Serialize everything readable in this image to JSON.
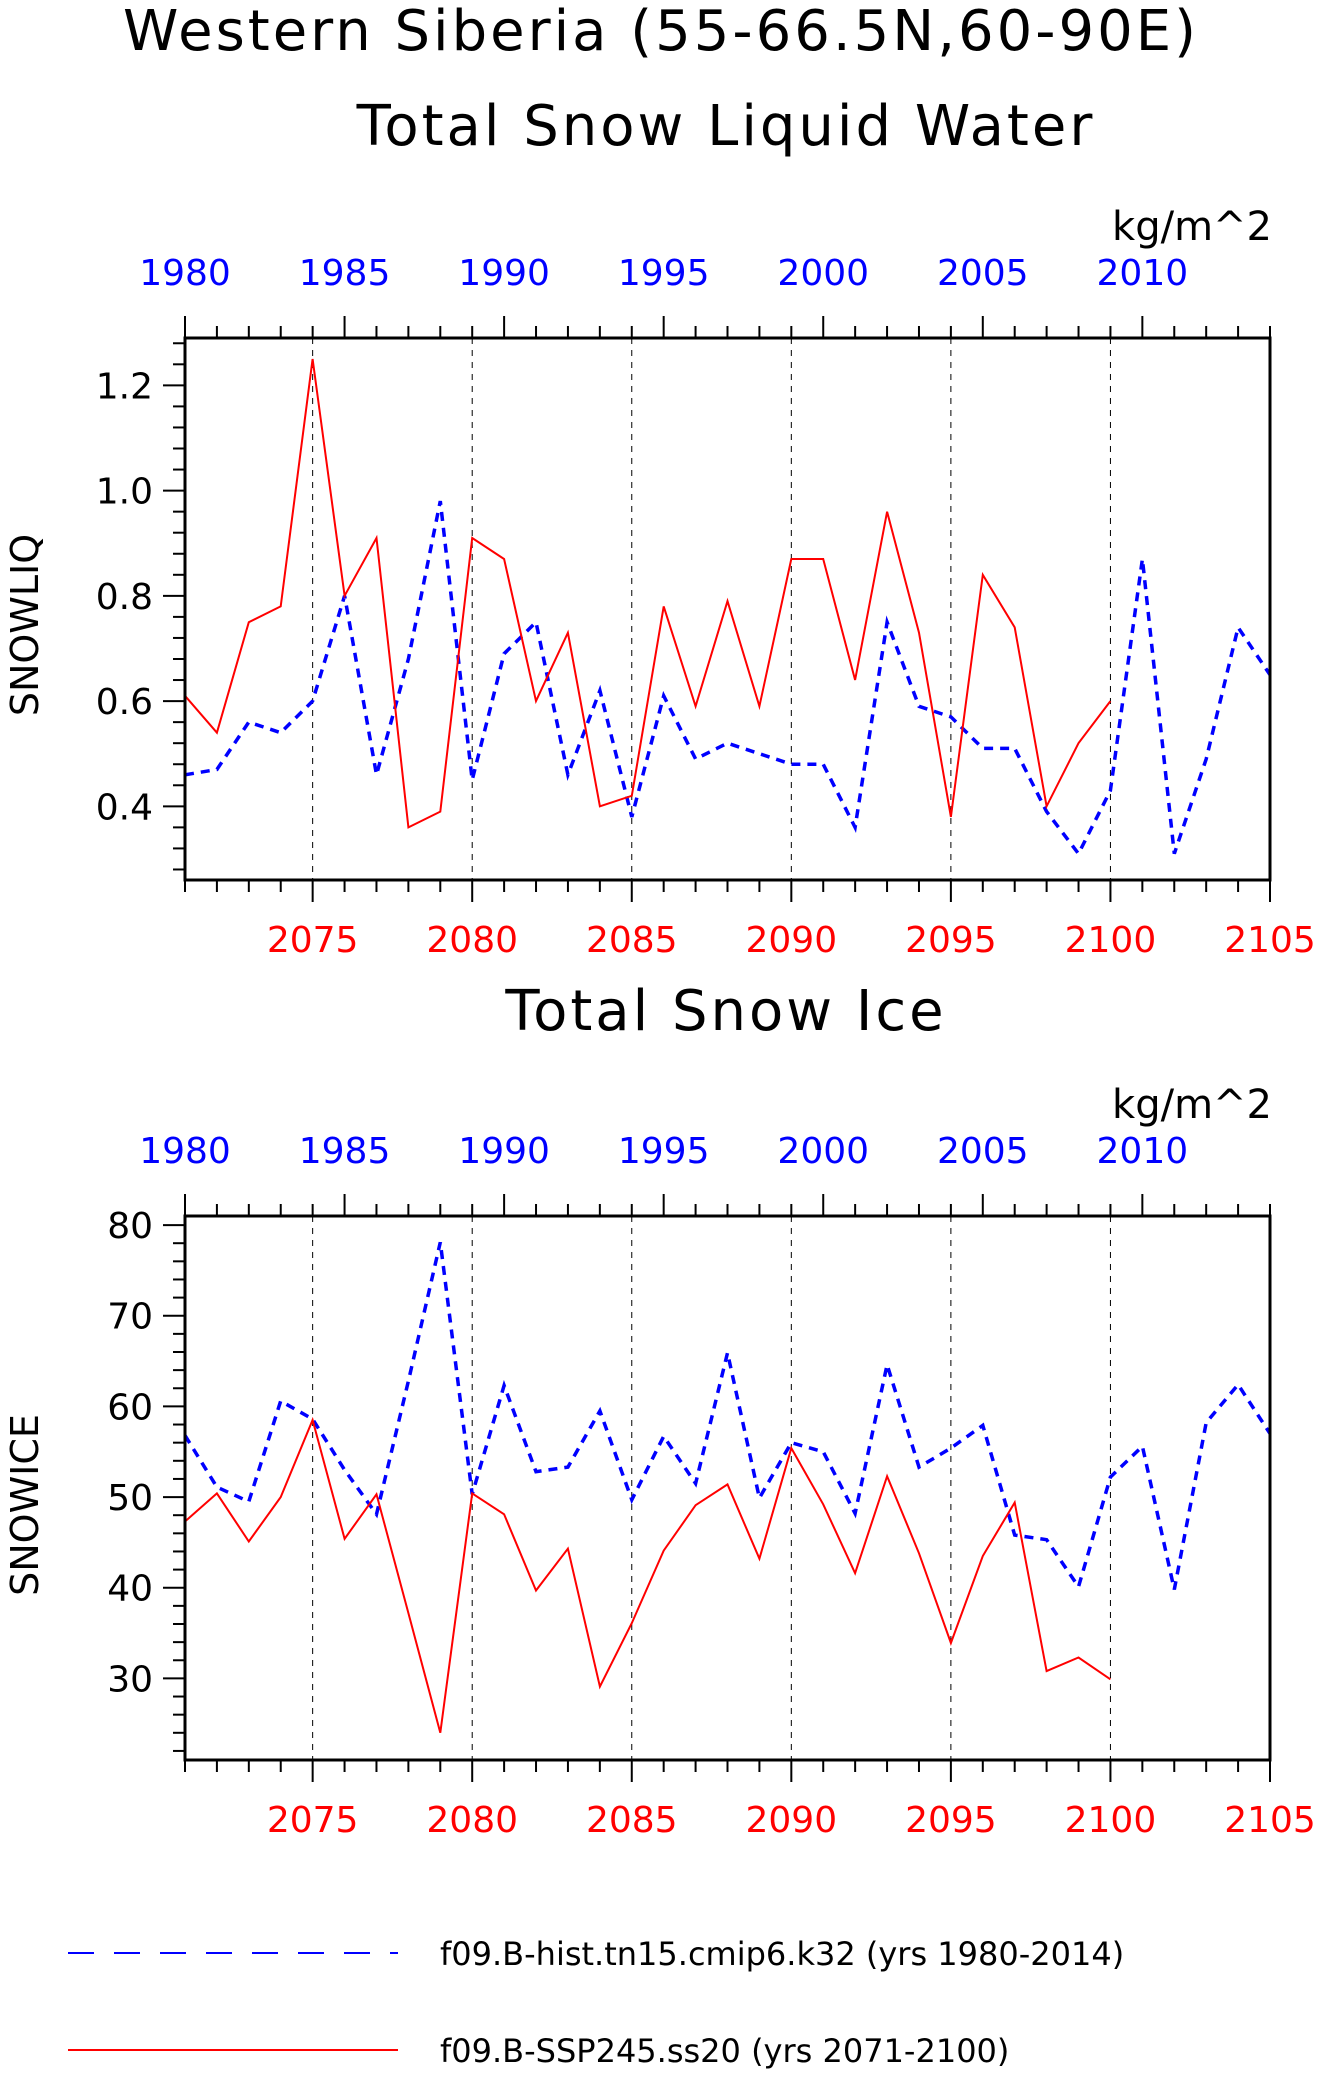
{
  "title_line1": "Western Siberia (55-66.5N,60-90E)",
  "chart_data": [
    {
      "type": "line",
      "title": "Total Snow Liquid Water",
      "ylabel": "SNOWLIQ",
      "units": "kg/m^2",
      "ylim": [
        0.26,
        1.29
      ],
      "yticks": [
        "0.4",
        "0.6",
        "0.8",
        "1.0",
        "1.2"
      ],
      "top_axis_ticks": [
        "1980",
        "1985",
        "1990",
        "1995",
        "2000",
        "2005",
        "2010"
      ],
      "bottom_axis_ticks": [
        "2075",
        "2080",
        "2085",
        "2090",
        "2095",
        "2100",
        "2105"
      ],
      "grid": "dashed vertical lines every 5 years",
      "series": [
        {
          "name": "f09.B-hist.tn15.cmip6.k32 (yrs 1980-2014)",
          "color": "#0000ff",
          "style": "dashed",
          "x": [
            1980,
            1981,
            1982,
            1983,
            1984,
            1985,
            1986,
            1987,
            1988,
            1989,
            1990,
            1991,
            1992,
            1993,
            1994,
            1995,
            1996,
            1997,
            1998,
            1999,
            2000,
            2001,
            2002,
            2003,
            2004,
            2005,
            2006,
            2007,
            2008,
            2009,
            2010,
            2011,
            2012,
            2013,
            2014
          ],
          "values": [
            0.46,
            0.47,
            0.56,
            0.54,
            0.6,
            0.8,
            0.46,
            0.68,
            0.98,
            0.45,
            0.69,
            0.75,
            0.46,
            0.62,
            0.38,
            0.61,
            0.49,
            0.52,
            0.5,
            0.48,
            0.48,
            0.36,
            0.75,
            0.59,
            0.57,
            0.51,
            0.51,
            0.39,
            0.31,
            0.43,
            0.87,
            0.31,
            0.49,
            0.74,
            0.65
          ]
        },
        {
          "name": "f09.B-SSP245.ss20 (yrs 2071-2100)",
          "color": "#ff0000",
          "style": "solid",
          "x": [
            2071,
            2072,
            2073,
            2074,
            2075,
            2076,
            2077,
            2078,
            2079,
            2080,
            2081,
            2082,
            2083,
            2084,
            2085,
            2086,
            2087,
            2088,
            2089,
            2090,
            2091,
            2092,
            2093,
            2094,
            2095,
            2096,
            2097,
            2098,
            2099,
            2100
          ],
          "values": [
            0.61,
            0.54,
            0.75,
            0.78,
            1.25,
            0.8,
            0.91,
            0.36,
            0.39,
            0.91,
            0.87,
            0.6,
            0.73,
            0.4,
            0.42,
            0.78,
            0.59,
            0.79,
            0.59,
            0.87,
            0.87,
            0.64,
            0.96,
            0.73,
            0.38,
            0.84,
            0.74,
            0.4,
            0.52,
            0.6
          ]
        }
      ]
    },
    {
      "type": "line",
      "title": "Total Snow Ice",
      "ylabel": "SNOWICE",
      "units": "kg/m^2",
      "ylim": [
        21,
        81
      ],
      "yticks": [
        "30",
        "40",
        "50",
        "60",
        "70",
        "80"
      ],
      "top_axis_ticks": [
        "1980",
        "1985",
        "1990",
        "1995",
        "2000",
        "2005",
        "2010"
      ],
      "bottom_axis_ticks": [
        "2075",
        "2080",
        "2085",
        "2090",
        "2095",
        "2100",
        "2105"
      ],
      "grid": "dashed vertical lines every 5 years",
      "series": [
        {
          "name": "f09.B-hist.tn15.cmip6.k32 (yrs 1980-2014)",
          "color": "#0000ff",
          "style": "dashed",
          "x": [
            1980,
            1981,
            1982,
            1983,
            1984,
            1985,
            1986,
            1987,
            1988,
            1989,
            1990,
            1991,
            1992,
            1993,
            1994,
            1995,
            1996,
            1997,
            1998,
            1999,
            2000,
            2001,
            2002,
            2003,
            2004,
            2005,
            2006,
            2007,
            2008,
            2009,
            2010,
            2011,
            2012,
            2013,
            2014
          ],
          "values": [
            56.8,
            51.1,
            49.5,
            60.6,
            58.6,
            53.0,
            48.1,
            62.8,
            78.1,
            50.3,
            62.3,
            52.8,
            53.3,
            59.5,
            49.7,
            56.7,
            51.5,
            65.9,
            49.9,
            56.0,
            55.0,
            48.2,
            64.6,
            53.3,
            55.4,
            57.9,
            45.8,
            45.3,
            40.1,
            52.2,
            55.6,
            39.8,
            58.2,
            62.4,
            57.0
          ]
        },
        {
          "name": "f09.B-SSP245.ss20 (yrs 2071-2100)",
          "color": "#ff0000",
          "style": "solid",
          "x": [
            2071,
            2072,
            2073,
            2074,
            2075,
            2076,
            2077,
            2078,
            2079,
            2080,
            2081,
            2082,
            2083,
            2084,
            2085,
            2086,
            2087,
            2088,
            2089,
            2090,
            2091,
            2092,
            2093,
            2094,
            2095,
            2096,
            2097,
            2098,
            2099,
            2100
          ],
          "values": [
            47.3,
            50.4,
            45.1,
            50.0,
            58.5,
            45.4,
            50.3,
            37.2,
            24.0,
            50.4,
            48.1,
            39.7,
            44.3,
            29.1,
            36.1,
            44.1,
            49.1,
            51.4,
            43.2,
            55.4,
            49.2,
            41.6,
            52.3,
            43.8,
            33.9,
            43.5,
            49.4,
            30.8,
            32.3,
            29.9
          ]
        }
      ]
    }
  ],
  "legend": [
    {
      "label": "f09.B-hist.tn15.cmip6.k32 (yrs 1980-2014)",
      "color": "#0000ff",
      "style": "dashed"
    },
    {
      "label": "f09.B-SSP245.ss20 (yrs 2071-2100)",
      "color": "#ff0000",
      "style": "solid"
    }
  ]
}
